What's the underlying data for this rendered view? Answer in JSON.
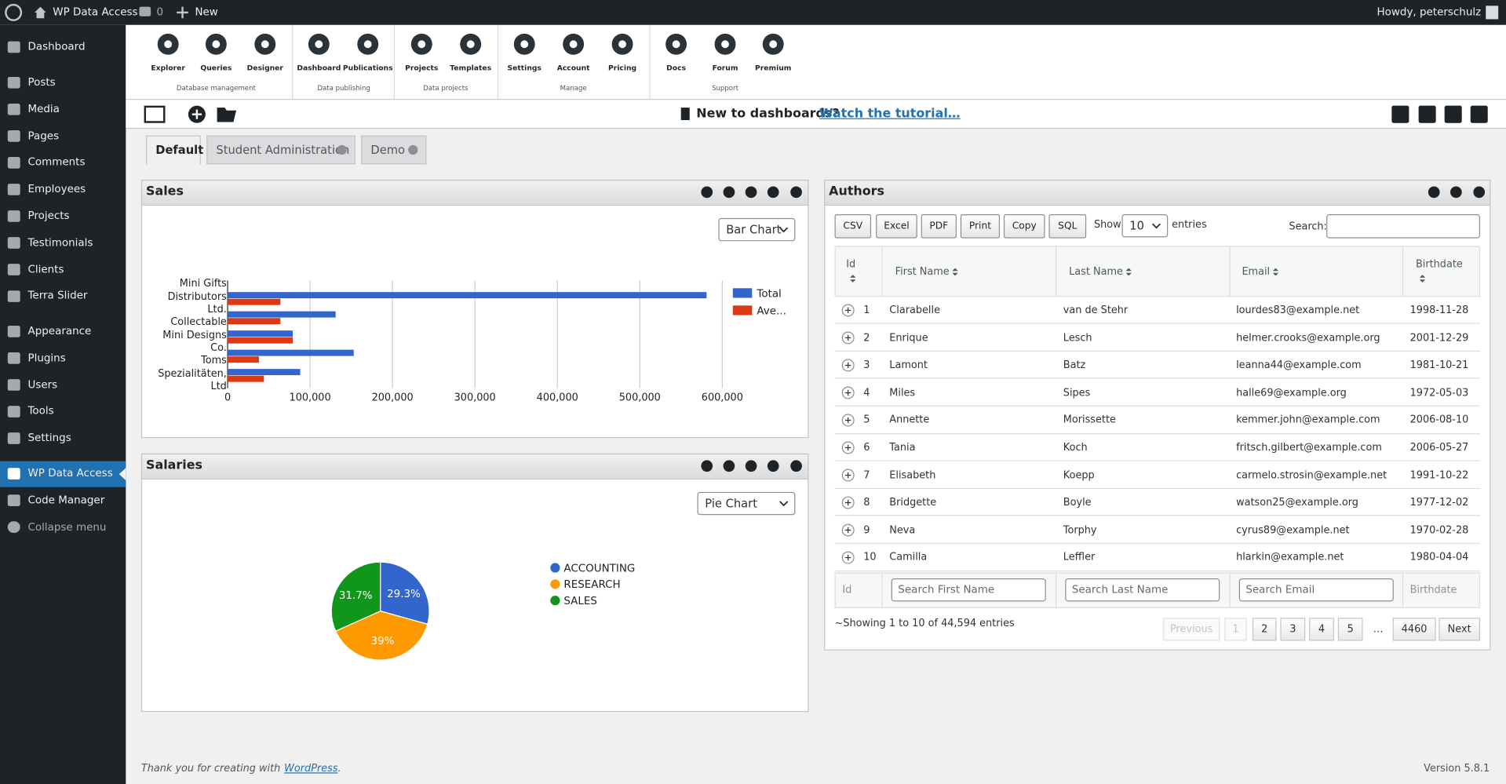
{
  "admin_bar": {
    "site": "WP Data Access",
    "comments": "0",
    "new": "New",
    "howdy": "Howdy, peterschulz"
  },
  "menu": [
    [
      "Dashboard"
    ],
    [
      "Posts",
      "Media",
      "Pages",
      "Comments",
      "Employees",
      "Projects",
      "Testimonials",
      "Clients",
      "Terra Slider"
    ],
    [
      "Appearance",
      "Plugins",
      "Users",
      "Tools",
      "Settings"
    ],
    [
      "WP Data Access",
      "Code Manager",
      "Collapse menu"
    ]
  ],
  "toolbar": [
    {
      "label": "Database management",
      "items": [
        "Explorer",
        "Queries",
        "Designer"
      ]
    },
    {
      "label": "Data publishing",
      "items": [
        "Dashboard",
        "Publications"
      ]
    },
    {
      "label": "Data projects",
      "items": [
        "Projects",
        "Templates"
      ]
    },
    {
      "label": "Manage",
      "items": [
        "Settings",
        "Account",
        "Pricing"
      ]
    },
    {
      "label": "Support",
      "items": [
        "Docs",
        "Forum",
        "Premium"
      ]
    }
  ],
  "notice": {
    "text": "New to dashboards?",
    "link": "Watch the tutorial…"
  },
  "tabs": [
    "Default",
    "Student Administration",
    "Demo"
  ],
  "sales_panel": {
    "title": "Sales",
    "select": "Bar Chart"
  },
  "salaries_panel": {
    "title": "Salaries",
    "select": "Pie Chart"
  },
  "chart_data": [
    {
      "type": "bar",
      "orientation": "horizontal",
      "categories": [
        "Mini Gifts Distributors Ltd.",
        null,
        "Collectable Mini Designs Co.",
        null,
        "Toms Spezialitäten, Ltd"
      ],
      "series": [
        {
          "name": "Total",
          "color": "#3366cc",
          "values": [
            581000,
            131000,
            79000,
            153000,
            88000
          ]
        },
        {
          "name": "Ave...",
          "color": "#dc3912",
          "values": [
            64000,
            64000,
            79000,
            38000,
            44000
          ]
        }
      ],
      "xlim": [
        0,
        600000
      ],
      "xticks": [
        0,
        {
          "value": 100000,
          "label": "100,000"
        },
        {
          "value": 200000,
          "label": "200,000"
        },
        {
          "value": 300000,
          "label": "300,000"
        },
        {
          "value": 400000,
          "label": "400,000"
        },
        {
          "value": 500000,
          "label": "500,000"
        },
        {
          "value": 600000,
          "label": "600,000"
        }
      ],
      "grid": true
    },
    {
      "type": "pie",
      "categories": [
        "ACCOUNTING",
        "RESEARCH",
        "SALES"
      ],
      "values": [
        29.3,
        39,
        31.7
      ],
      "value_labels": [
        "29.3%",
        "39%",
        "31.7%"
      ],
      "colors": [
        "#3366cc",
        "#ff9900",
        "#109618"
      ]
    }
  ],
  "authors": {
    "title": "Authors",
    "buttons": [
      "CSV",
      "Excel",
      "PDF",
      "Print",
      "Copy",
      "SQL"
    ],
    "show": "Show",
    "length": "10",
    "entries": "entries",
    "search": "Search:",
    "columns": [
      "Id",
      "First Name",
      "Last Name",
      "Email",
      "Birthdate"
    ],
    "rows": [
      [
        "1",
        "Clarabelle",
        "van de Stehr",
        "lourdes83@example.net",
        "1998-11-28"
      ],
      [
        "2",
        "Enrique",
        "Lesch",
        "helmer.crooks@example.org",
        "2001-12-29"
      ],
      [
        "3",
        "Lamont",
        "Batz",
        "leanna44@example.com",
        "1981-10-21"
      ],
      [
        "4",
        "Miles",
        "Sipes",
        "halle69@example.org",
        "1972-05-03"
      ],
      [
        "5",
        "Annette",
        "Morissette",
        "kemmer.john@example.com",
        "2006-08-10"
      ],
      [
        "6",
        "Tania",
        "Koch",
        "fritsch.gilbert@example.com",
        "2006-05-27"
      ],
      [
        "7",
        "Elisabeth",
        "Koepp",
        "carmelo.strosin@example.net",
        "1991-10-22"
      ],
      [
        "8",
        "Bridgette",
        "Boyle",
        "watson25@example.org",
        "1977-12-02"
      ],
      [
        "9",
        "Neva",
        "Torphy",
        "cyrus89@example.net",
        "1970-02-28"
      ],
      [
        "10",
        "Camilla",
        "Leffler",
        "hlarkin@example.net",
        "1980-04-04"
      ]
    ],
    "footer": [
      "Id",
      "Search First Name",
      "Search Last Name",
      "Search Email",
      "Birthdate"
    ],
    "info": "~Showing 1 to 10 of 44,594 entries",
    "pages": [
      "Previous",
      "1",
      "2",
      "3",
      "4",
      "5",
      "…",
      "4460",
      "Next"
    ]
  },
  "footer": {
    "thanks": "Thank you for creating with",
    "link": "WordPress",
    "end": ".",
    "version": "Version 5.8.1"
  }
}
